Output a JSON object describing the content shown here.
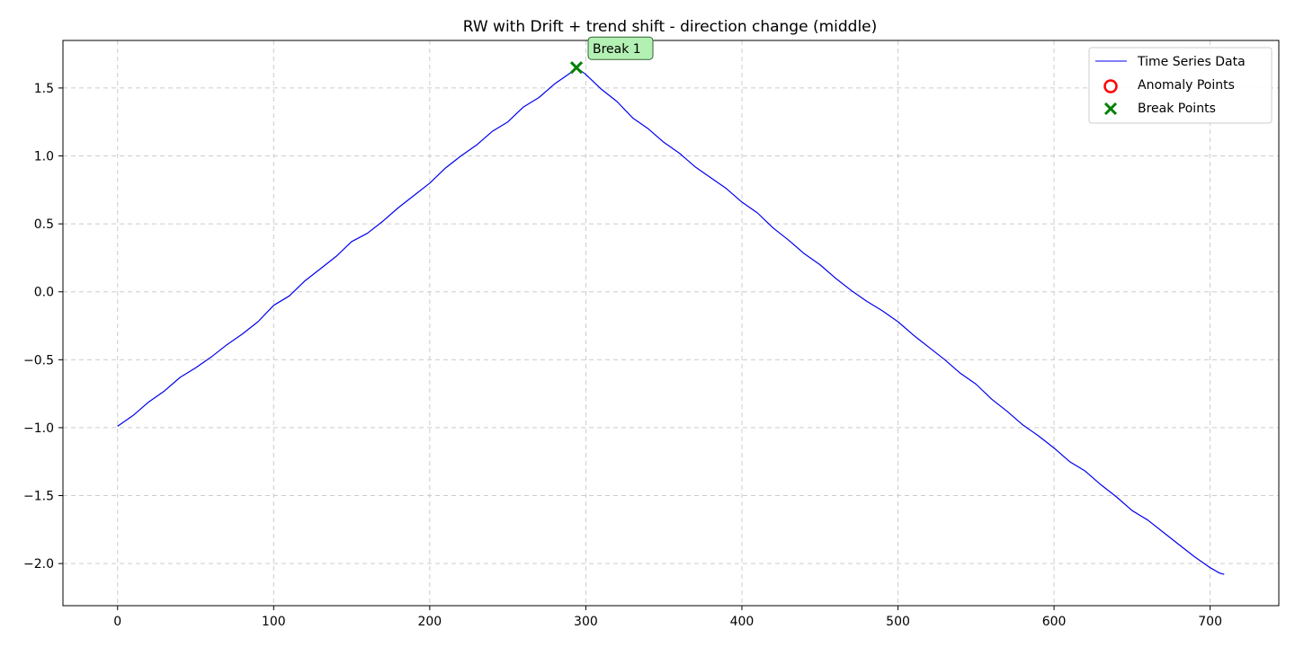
{
  "chart_data": {
    "type": "line",
    "title": "RW with Drift + trend shift - direction change (middle)",
    "xlabel": "",
    "ylabel": "",
    "xlim": [
      -35,
      744
    ],
    "ylim": [
      -2.31,
      1.85
    ],
    "xticks": [
      0,
      100,
      200,
      300,
      400,
      500,
      600,
      700
    ],
    "yticks": [
      -2.0,
      -1.5,
      -1.0,
      -0.5,
      0.0,
      0.5,
      1.0,
      1.5
    ],
    "xtick_labels": [
      "0",
      "100",
      "200",
      "300",
      "400",
      "500",
      "600",
      "700"
    ],
    "ytick_labels": [
      "−2.0",
      "−1.5",
      "−1.0",
      "−0.5",
      "0.0",
      "0.5",
      "1.0",
      "1.5"
    ],
    "grid": true,
    "legend_position": "top-right",
    "series": [
      {
        "name": "Time Series Data",
        "kind": "line",
        "color": "#0000ee",
        "x": [
          0,
          10,
          20,
          30,
          40,
          50,
          60,
          70,
          80,
          90,
          100,
          110,
          120,
          130,
          140,
          150,
          160,
          170,
          180,
          190,
          200,
          210,
          220,
          230,
          240,
          250,
          260,
          270,
          280,
          290,
          294,
          300,
          310,
          320,
          330,
          340,
          350,
          360,
          370,
          380,
          390,
          400,
          410,
          420,
          430,
          440,
          450,
          460,
          470,
          480,
          490,
          500,
          510,
          520,
          530,
          540,
          550,
          560,
          570,
          580,
          590,
          600,
          610,
          620,
          630,
          640,
          650,
          660,
          670,
          680,
          690,
          700,
          706,
          709
        ],
        "y": [
          -0.99,
          -0.91,
          -0.81,
          -0.73,
          -0.63,
          -0.56,
          -0.48,
          -0.39,
          -0.31,
          -0.22,
          -0.1,
          -0.03,
          0.08,
          0.17,
          0.26,
          0.37,
          0.43,
          0.52,
          0.62,
          0.71,
          0.8,
          0.91,
          1.0,
          1.08,
          1.18,
          1.25,
          1.36,
          1.43,
          1.53,
          1.61,
          1.65,
          1.6,
          1.49,
          1.4,
          1.28,
          1.2,
          1.1,
          1.02,
          0.92,
          0.84,
          0.76,
          0.66,
          0.58,
          0.47,
          0.38,
          0.28,
          0.2,
          0.1,
          0.01,
          -0.07,
          -0.14,
          -0.22,
          -0.32,
          -0.41,
          -0.5,
          -0.6,
          -0.68,
          -0.79,
          -0.88,
          -0.98,
          -1.06,
          -1.15,
          -1.25,
          -1.32,
          -1.42,
          -1.51,
          -1.61,
          -1.68,
          -1.77,
          -1.86,
          -1.95,
          -2.03,
          -2.07,
          -2.08
        ]
      }
    ],
    "anomaly_points": {
      "name": "Anomaly Points",
      "color": "#ff0000",
      "x": [],
      "y": []
    },
    "break_points": {
      "name": "Break Points",
      "color": "#008000",
      "x": [
        294
      ],
      "y": [
        1.65
      ],
      "labels": [
        "Break 1"
      ]
    }
  }
}
